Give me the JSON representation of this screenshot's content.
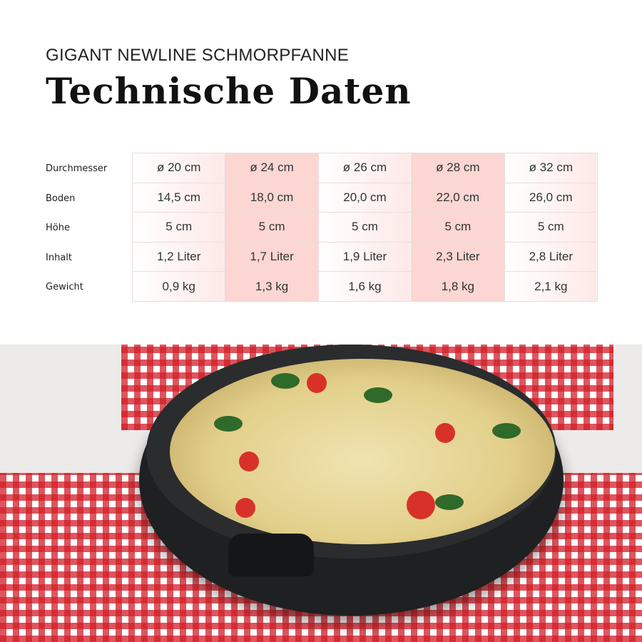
{
  "header": {
    "subtitle": "GIGANT NEWLINE SCHMORPFANNE",
    "title": "Technische Daten"
  },
  "table": {
    "row_labels": [
      "Durchmesser",
      "Boden",
      "Höhe",
      "Inhalt",
      "Gewicht"
    ],
    "rows": [
      [
        "ø 20 cm",
        "ø 24 cm",
        "ø 26 cm",
        "ø 28 cm",
        "ø 32 cm"
      ],
      [
        "14,5 cm",
        "18,0 cm",
        "20,0 cm",
        "22,0 cm",
        "26,0 cm"
      ],
      [
        "5 cm",
        "5 cm",
        "5 cm",
        "5 cm",
        "5 cm"
      ],
      [
        "1,2 Liter",
        "1,7 Liter",
        "1,9 Liter",
        "2,3 Liter",
        "2,8 Liter"
      ],
      [
        "0,9 kg",
        "1,3 kg",
        "1,6 kg",
        "1,8 kg",
        "2,1 kg"
      ]
    ]
  },
  "colors": {
    "accent_pink": "#fbd6d2",
    "cloth_red": "#d21e28",
    "pan": "#1e2022"
  }
}
